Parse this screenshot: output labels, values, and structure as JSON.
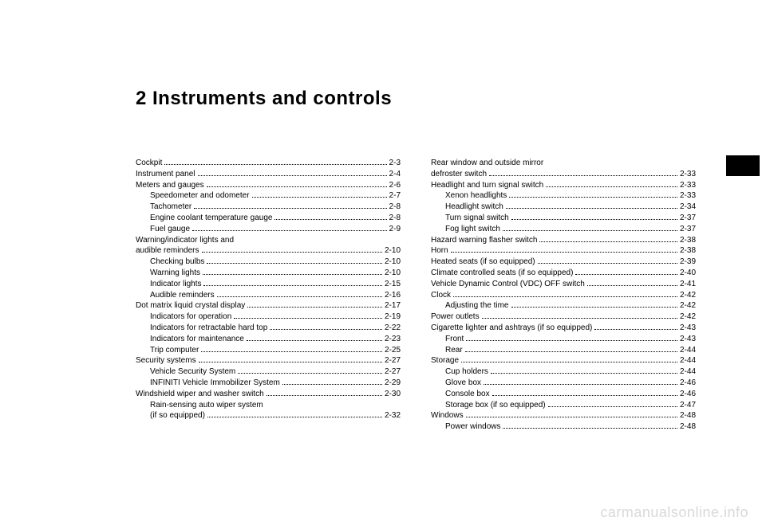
{
  "title": "2 Instruments and controls",
  "watermark": "carmanualsonline.info",
  "left": [
    {
      "label": "Cockpit",
      "page": "2-3",
      "sub": false
    },
    {
      "label": "Instrument panel",
      "page": "2-4",
      "sub": false
    },
    {
      "label": "Meters and gauges",
      "page": "2-6",
      "sub": false
    },
    {
      "label": "Speedometer and odometer",
      "page": "2-7",
      "sub": true
    },
    {
      "label": "Tachometer",
      "page": "2-8",
      "sub": true
    },
    {
      "label": "Engine coolant temperature gauge",
      "page": "2-8",
      "sub": true
    },
    {
      "label": "Fuel gauge",
      "page": "2-9",
      "sub": true
    },
    {
      "label": "Warning/indicator lights and",
      "page": "",
      "sub": false,
      "nodots": true
    },
    {
      "label": "audible reminders",
      "page": "2-10",
      "sub": false
    },
    {
      "label": "Checking bulbs",
      "page": "2-10",
      "sub": true
    },
    {
      "label": "Warning lights",
      "page": "2-10",
      "sub": true
    },
    {
      "label": "Indicator lights",
      "page": "2-15",
      "sub": true
    },
    {
      "label": "Audible reminders",
      "page": "2-16",
      "sub": true
    },
    {
      "label": "Dot matrix liquid crystal display",
      "page": "2-17",
      "sub": false
    },
    {
      "label": "Indicators for operation",
      "page": "2-19",
      "sub": true
    },
    {
      "label": "Indicators for retractable hard top",
      "page": "2-22",
      "sub": true
    },
    {
      "label": "Indicators for maintenance",
      "page": "2-23",
      "sub": true
    },
    {
      "label": "Trip computer",
      "page": "2-25",
      "sub": true
    },
    {
      "label": "Security systems",
      "page": "2-27",
      "sub": false
    },
    {
      "label": "Vehicle Security System",
      "page": "2-27",
      "sub": true
    },
    {
      "label": "INFINITI Vehicle Immobilizer System",
      "page": "2-29",
      "sub": true
    },
    {
      "label": "Windshield wiper and washer switch",
      "page": "2-30",
      "sub": false
    },
    {
      "label": "Rain-sensing auto wiper system",
      "page": "",
      "sub": true,
      "nodots": true
    },
    {
      "label": "(if so equipped)",
      "page": "2-32",
      "sub": true
    }
  ],
  "right": [
    {
      "label": "Rear window and outside mirror",
      "page": "",
      "sub": false,
      "nodots": true
    },
    {
      "label": "defroster switch",
      "page": "2-33",
      "sub": false
    },
    {
      "label": "Headlight and turn signal switch",
      "page": "2-33",
      "sub": false
    },
    {
      "label": "Xenon headlights",
      "page": "2-33",
      "sub": true
    },
    {
      "label": "Headlight switch",
      "page": "2-34",
      "sub": true
    },
    {
      "label": "Turn signal switch",
      "page": "2-37",
      "sub": true
    },
    {
      "label": "Fog light switch",
      "page": "2-37",
      "sub": true
    },
    {
      "label": "Hazard warning flasher switch",
      "page": "2-38",
      "sub": false
    },
    {
      "label": "Horn",
      "page": "2-38",
      "sub": false
    },
    {
      "label": "Heated seats (if so equipped)",
      "page": "2-39",
      "sub": false
    },
    {
      "label": "Climate controlled seats (if so equipped)",
      "page": "2-40",
      "sub": false
    },
    {
      "label": "Vehicle Dynamic Control (VDC) OFF switch",
      "page": "2-41",
      "sub": false
    },
    {
      "label": "Clock",
      "page": "2-42",
      "sub": false
    },
    {
      "label": "Adjusting the time",
      "page": "2-42",
      "sub": true
    },
    {
      "label": "Power outlets",
      "page": "2-42",
      "sub": false
    },
    {
      "label": "Cigarette lighter and ashtrays (if so equipped)",
      "page": "2-43",
      "sub": false
    },
    {
      "label": "Front",
      "page": "2-43",
      "sub": true
    },
    {
      "label": "Rear",
      "page": "2-44",
      "sub": true
    },
    {
      "label": "Storage",
      "page": "2-44",
      "sub": false
    },
    {
      "label": "Cup holders",
      "page": "2-44",
      "sub": true
    },
    {
      "label": "Glove box",
      "page": "2-46",
      "sub": true
    },
    {
      "label": "Console box",
      "page": "2-46",
      "sub": true
    },
    {
      "label": "Storage box (if so equipped)",
      "page": "2-47",
      "sub": true
    },
    {
      "label": "Windows",
      "page": "2-48",
      "sub": false
    },
    {
      "label": "Power windows",
      "page": "2-48",
      "sub": true
    }
  ]
}
